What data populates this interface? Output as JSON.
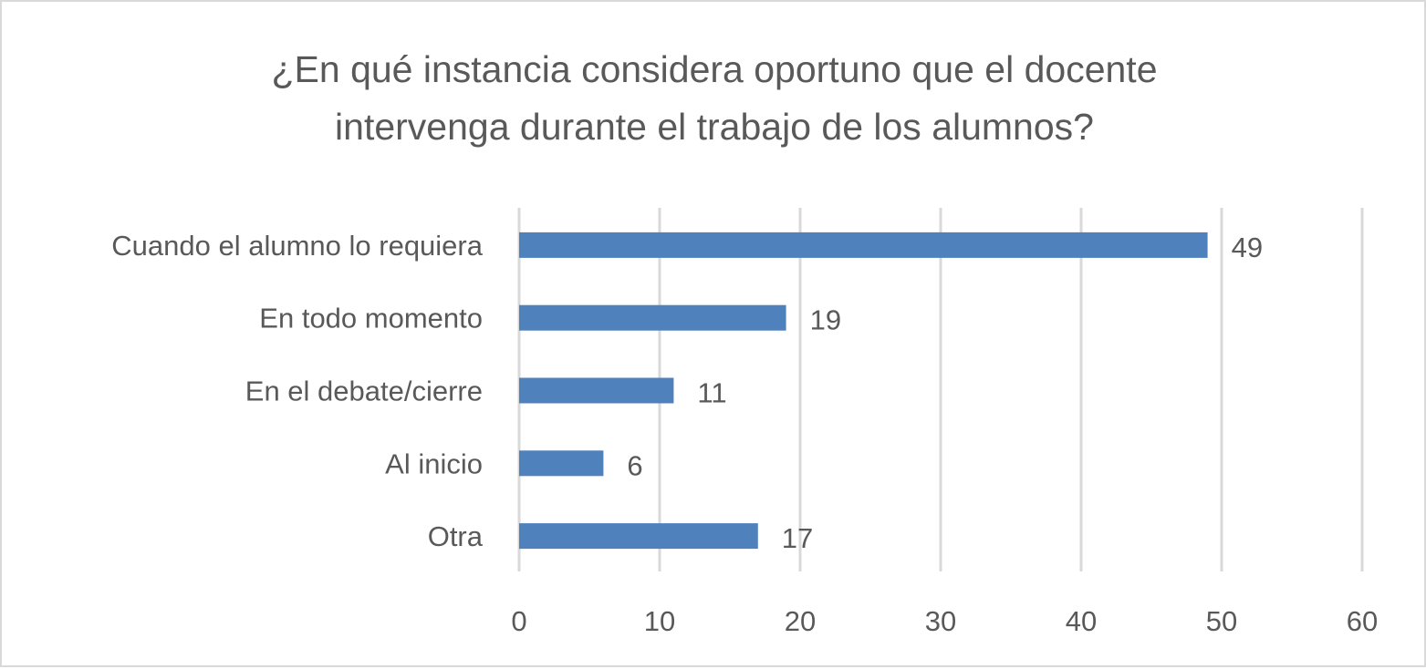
{
  "chart_data": {
    "type": "bar",
    "orientation": "horizontal",
    "title": [
      "¿En qué instancia considera oportuno que el docente",
      "intervenga durante el trabajo de los alumnos?"
    ],
    "categories": [
      "Cuando el alumno lo requiera",
      "En todo momento",
      "En el debate/cierre",
      "Al inicio",
      "Otra"
    ],
    "values": [
      49,
      19,
      11,
      6,
      17
    ],
    "xlim": [
      0,
      60
    ],
    "xticks": [
      "0",
      "10",
      "20",
      "30",
      "40",
      "50",
      "60"
    ],
    "grid": true,
    "data_labels": true,
    "legend": "none",
    "colors": {
      "bar": "#4F81BD",
      "grid": "#D9D9D9",
      "text": "#595959"
    }
  }
}
